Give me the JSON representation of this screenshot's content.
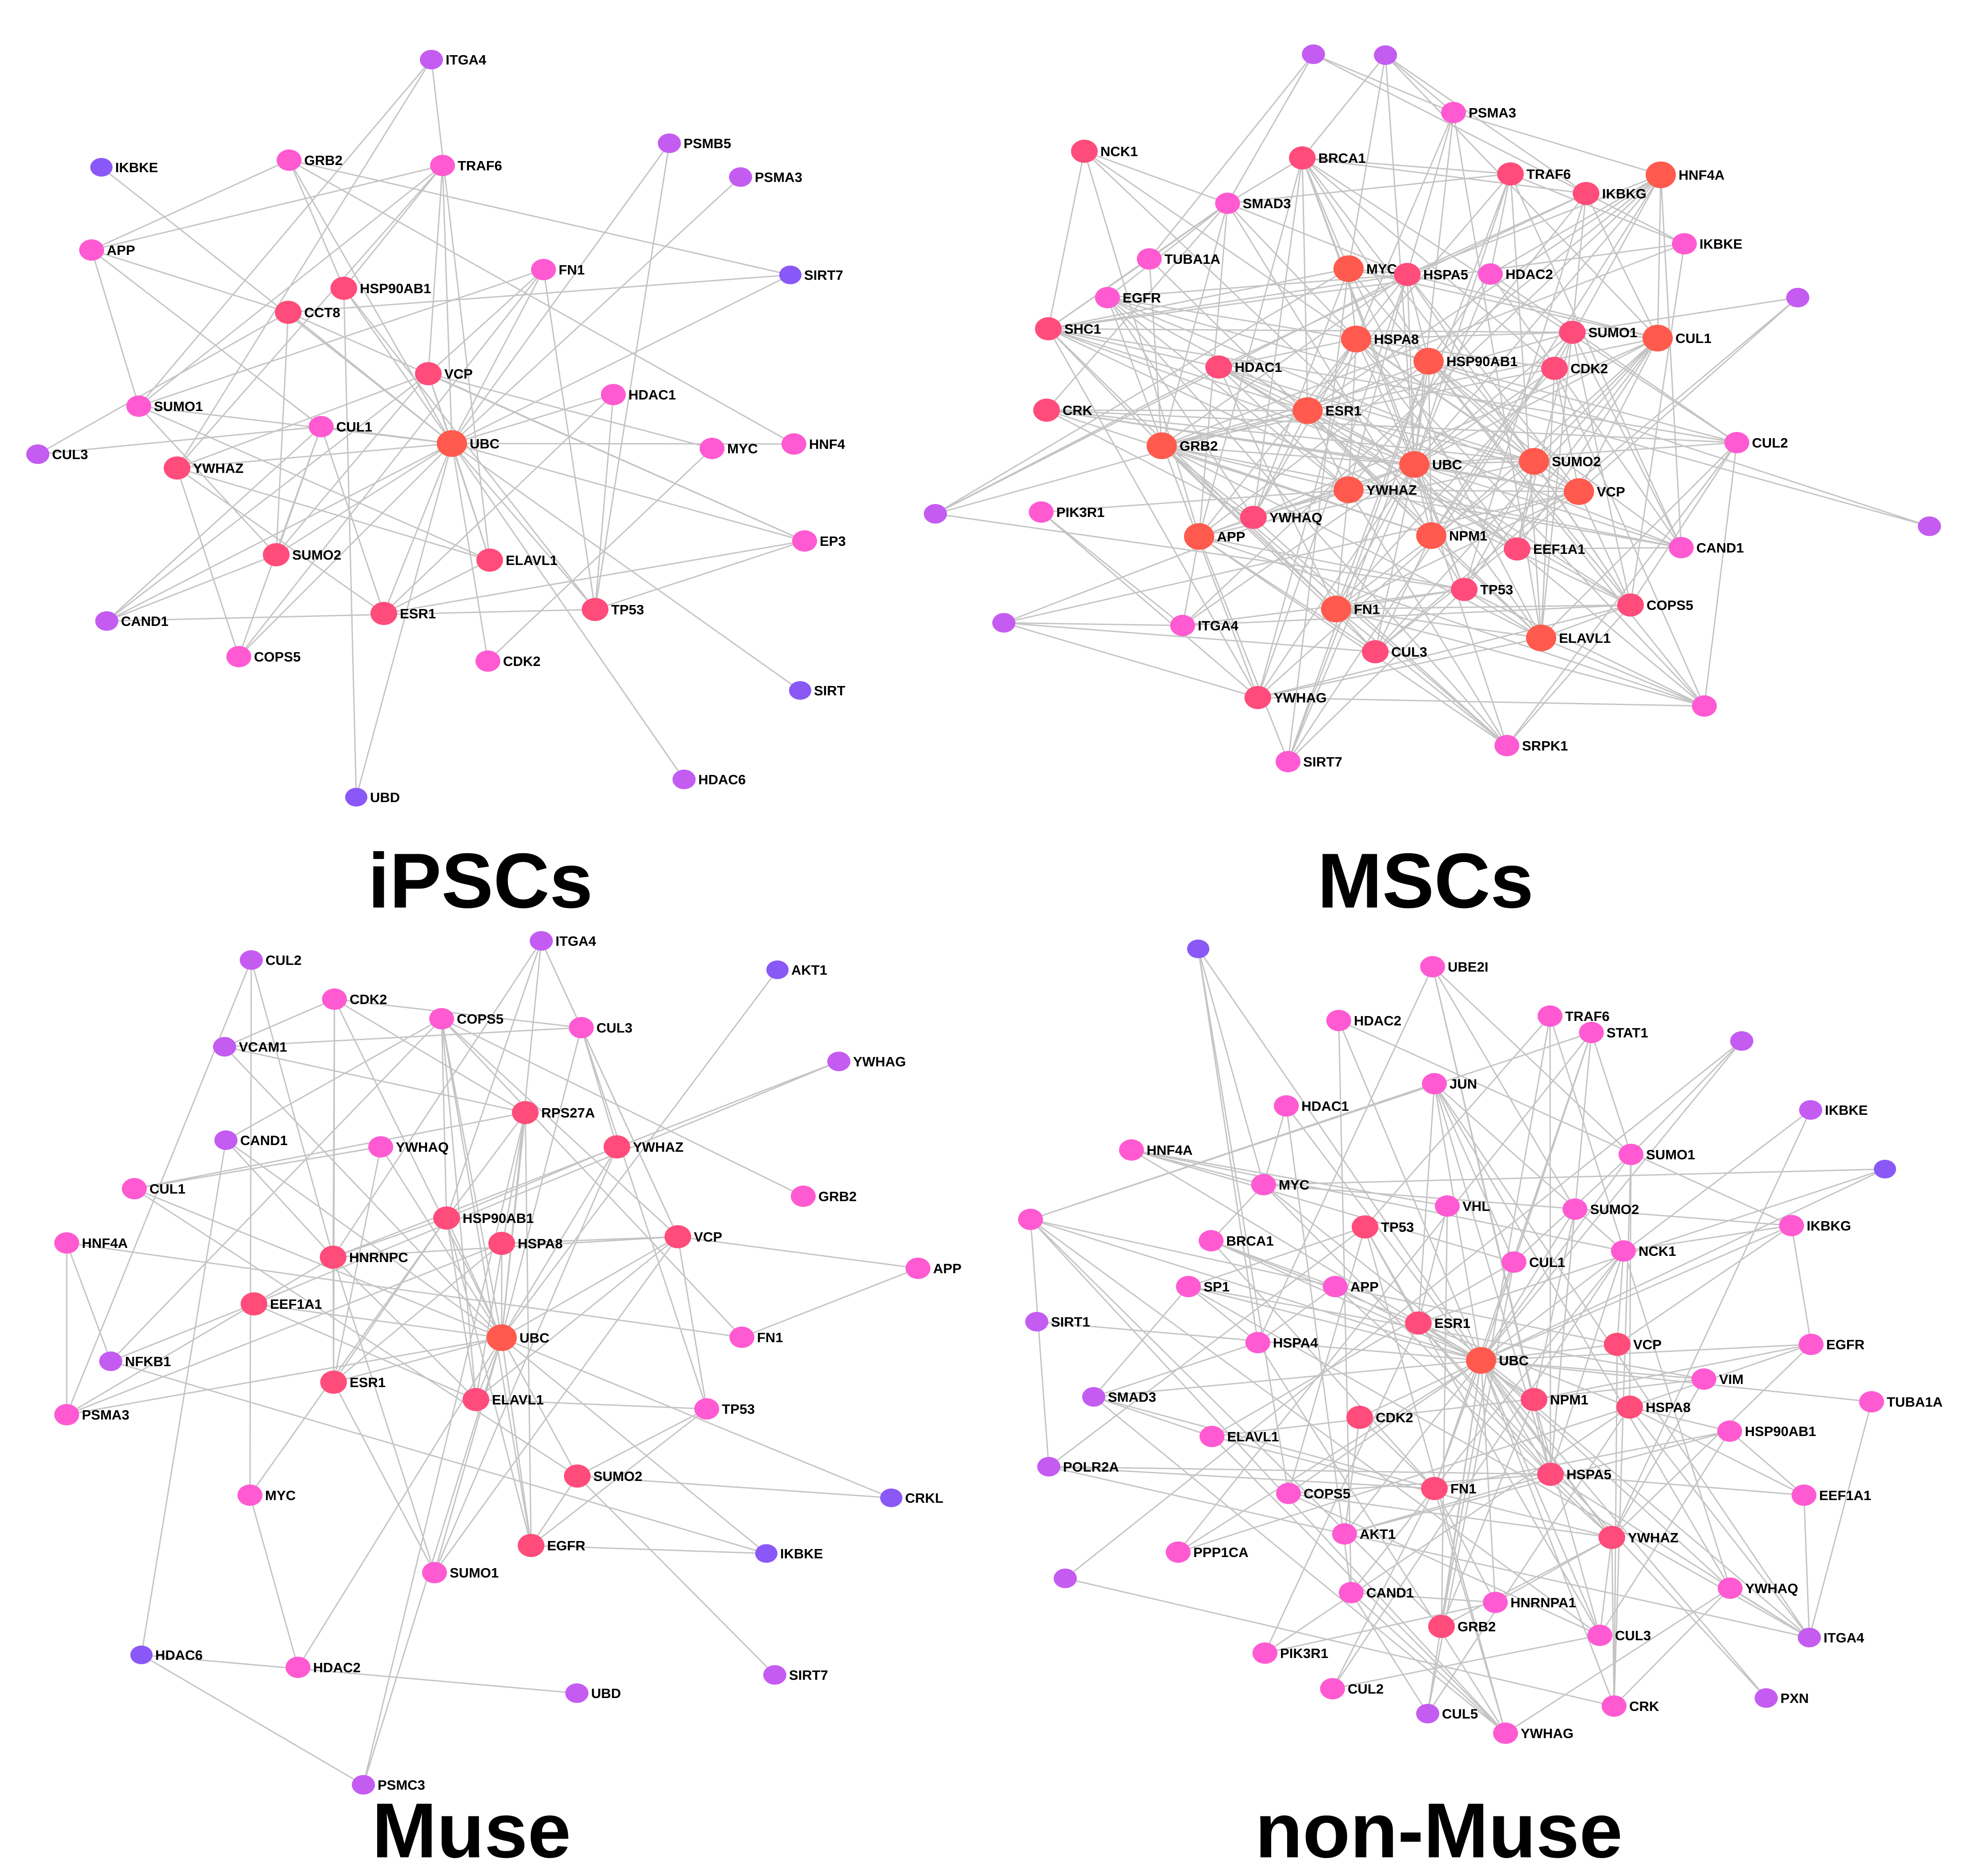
{
  "colors": {
    "hub": "#ff5a4d",
    "high": "#ff4c7a",
    "mid": "#ff5ad2",
    "low": "#c45cf2",
    "lowest": "#8a58f6",
    "edge": "#c4c4c4",
    "background": "#ffffff"
  },
  "panels": [
    {
      "id": "ipsc",
      "title": "iPSCs",
      "nodes": [
        {
          "label": "ITGA4",
          "level": "low"
        },
        {
          "label": "IKBKE",
          "level": "lowest"
        },
        {
          "label": "GRB2",
          "level": "mid"
        },
        {
          "label": "TRAF6",
          "level": "mid"
        },
        {
          "label": "PSMB5",
          "level": "low"
        },
        {
          "label": "PSMA3",
          "level": "low"
        },
        {
          "label": "APP",
          "level": "mid"
        },
        {
          "label": "HSP90AB1",
          "level": "high"
        },
        {
          "label": "FN1",
          "level": "mid"
        },
        {
          "label": "SIRT7",
          "level": "lowest"
        },
        {
          "label": "CCT8",
          "level": "high"
        },
        {
          "label": "VCP",
          "level": "high"
        },
        {
          "label": "HDAC1",
          "level": "mid"
        },
        {
          "label": "SUMO1",
          "level": "mid"
        },
        {
          "label": "CUL1",
          "level": "mid"
        },
        {
          "label": "UBC",
          "level": "hub"
        },
        {
          "label": "CUL3",
          "level": "low"
        },
        {
          "label": "YWHAZ",
          "level": "high"
        },
        {
          "label": "MYC",
          "level": "mid"
        },
        {
          "label": "HNF4",
          "level": "mid"
        },
        {
          "label": "SUMO2",
          "level": "high"
        },
        {
          "label": "ELAVL1",
          "level": "high"
        },
        {
          "label": "EP3",
          "level": "mid"
        },
        {
          "label": "TP53",
          "level": "high"
        },
        {
          "label": "CAND1",
          "level": "low"
        },
        {
          "label": "ESR1",
          "level": "high"
        },
        {
          "label": "COPS5",
          "level": "mid"
        },
        {
          "label": "CDK2",
          "level": "mid"
        },
        {
          "label": "SIRT",
          "level": "lowest"
        },
        {
          "label": "HDAC6",
          "level": "low"
        },
        {
          "label": "UBD",
          "level": "lowest"
        }
      ]
    },
    {
      "id": "msc",
      "title": "MSCs",
      "nodes": [
        {
          "label": "",
          "level": "low"
        },
        {
          "label": "",
          "level": "low"
        },
        {
          "label": "PSMA3",
          "level": "mid"
        },
        {
          "label": "NCK1",
          "level": "high"
        },
        {
          "label": "BRCA1",
          "level": "high"
        },
        {
          "label": "TRAF6",
          "level": "high"
        },
        {
          "label": "HNF4A",
          "level": "hub"
        },
        {
          "label": "SMAD3",
          "level": "mid"
        },
        {
          "label": "IKBKG",
          "level": "high"
        },
        {
          "label": "IKBKE",
          "level": "mid"
        },
        {
          "label": "TUBA1A",
          "level": "mid"
        },
        {
          "label": "MYC",
          "level": "hub"
        },
        {
          "label": "HSPA5",
          "level": "high"
        },
        {
          "label": "HDAC2",
          "level": "mid"
        },
        {
          "label": "EGFR",
          "level": "mid"
        },
        {
          "label": "",
          "level": "low"
        },
        {
          "label": "SHC1",
          "level": "high"
        },
        {
          "label": "HSPA8",
          "level": "hub"
        },
        {
          "label": "SUMO1",
          "level": "high"
        },
        {
          "label": "CUL1",
          "level": "hub"
        },
        {
          "label": "HSP90AB1",
          "level": "hub"
        },
        {
          "label": "HDAC1",
          "level": "high"
        },
        {
          "label": "CDK2",
          "level": "high"
        },
        {
          "label": "CRK",
          "level": "high"
        },
        {
          "label": "ESR1",
          "level": "hub"
        },
        {
          "label": "CUL2",
          "level": "mid"
        },
        {
          "label": "GRB2",
          "level": "hub"
        },
        {
          "label": "UBC",
          "level": "hub"
        },
        {
          "label": "SUMO2",
          "level": "hub"
        },
        {
          "label": "YWHAZ",
          "level": "hub"
        },
        {
          "label": "VCP",
          "level": "hub"
        },
        {
          "label": "",
          "level": "low"
        },
        {
          "label": "PIK3R1",
          "level": "mid"
        },
        {
          "label": "YWHAQ",
          "level": "high"
        },
        {
          "label": "",
          "level": "low"
        },
        {
          "label": "APP",
          "level": "hub"
        },
        {
          "label": "NPM1",
          "level": "hub"
        },
        {
          "label": "EEF1A1",
          "level": "high"
        },
        {
          "label": "CAND1",
          "level": "mid"
        },
        {
          "label": "TP53",
          "level": "high"
        },
        {
          "label": "FN1",
          "level": "hub"
        },
        {
          "label": "COPS5",
          "level": "high"
        },
        {
          "label": "",
          "level": "low"
        },
        {
          "label": "ITGA4",
          "level": "mid"
        },
        {
          "label": "CUL3",
          "level": "high"
        },
        {
          "label": "ELAVL1",
          "level": "hub"
        },
        {
          "label": "YWHAG",
          "level": "high"
        },
        {
          "label": "",
          "level": "mid"
        },
        {
          "label": "SRPK1",
          "level": "mid"
        },
        {
          "label": "SIRT7",
          "level": "mid"
        }
      ]
    },
    {
      "id": "muse",
      "title": "Muse",
      "nodes": [
        {
          "label": "ITGA4",
          "level": "low"
        },
        {
          "label": "CUL2",
          "level": "low"
        },
        {
          "label": "AKT1",
          "level": "lowest"
        },
        {
          "label": "CDK2",
          "level": "mid"
        },
        {
          "label": "COPS5",
          "level": "mid"
        },
        {
          "label": "CUL3",
          "level": "mid"
        },
        {
          "label": "VCAM1",
          "level": "low"
        },
        {
          "label": "YWHAG",
          "level": "low"
        },
        {
          "label": "RPS27A",
          "level": "high"
        },
        {
          "label": "CAND1",
          "level": "low"
        },
        {
          "label": "YWHAQ",
          "level": "mid"
        },
        {
          "label": "YWHAZ",
          "level": "high"
        },
        {
          "label": "CUL1",
          "level": "mid"
        },
        {
          "label": "GRB2",
          "level": "mid"
        },
        {
          "label": "HNF4A",
          "level": "mid"
        },
        {
          "label": "HSP90AB1",
          "level": "high"
        },
        {
          "label": "VCP",
          "level": "high"
        },
        {
          "label": "HSPA8",
          "level": "high"
        },
        {
          "label": "HNRNPC",
          "level": "high"
        },
        {
          "label": "APP",
          "level": "mid"
        },
        {
          "label": "EEF1A1",
          "level": "high"
        },
        {
          "label": "UBC",
          "level": "hub"
        },
        {
          "label": "FN1",
          "level": "mid"
        },
        {
          "label": "NFKB1",
          "level": "low"
        },
        {
          "label": "ESR1",
          "level": "high"
        },
        {
          "label": "ELAVL1",
          "level": "high"
        },
        {
          "label": "TP53",
          "level": "mid"
        },
        {
          "label": "PSMA3",
          "level": "mid"
        },
        {
          "label": "SUMO2",
          "level": "high"
        },
        {
          "label": "MYC",
          "level": "mid"
        },
        {
          "label": "CRKL",
          "level": "lowest"
        },
        {
          "label": "EGFR",
          "level": "high"
        },
        {
          "label": "IKBKE",
          "level": "lowest"
        },
        {
          "label": "SUMO1",
          "level": "mid"
        },
        {
          "label": "HDAC6",
          "level": "lowest"
        },
        {
          "label": "HDAC2",
          "level": "mid"
        },
        {
          "label": "SIRT7",
          "level": "low"
        },
        {
          "label": "UBD",
          "level": "low"
        },
        {
          "label": "PSMC3",
          "level": "low"
        }
      ]
    },
    {
      "id": "nonmuse",
      "title": "non-Muse",
      "nodes": [
        {
          "label": "",
          "level": "lowest"
        },
        {
          "label": "UBE2I",
          "level": "mid"
        },
        {
          "label": "HDAC2",
          "level": "mid"
        },
        {
          "label": "TRAF6",
          "level": "mid"
        },
        {
          "label": "STAT1",
          "level": "mid"
        },
        {
          "label": "",
          "level": "low"
        },
        {
          "label": "JUN",
          "level": "mid"
        },
        {
          "label": "HDAC1",
          "level": "mid"
        },
        {
          "label": "IKBKE",
          "level": "low"
        },
        {
          "label": "HNF4A",
          "level": "mid"
        },
        {
          "label": "SUMO1",
          "level": "mid"
        },
        {
          "label": "",
          "level": "lowest"
        },
        {
          "label": "MYC",
          "level": "mid"
        },
        {
          "label": "VHL",
          "level": "mid"
        },
        {
          "label": "SUMO2",
          "level": "mid"
        },
        {
          "label": "TP53",
          "level": "high"
        },
        {
          "label": "IKBKG",
          "level": "mid"
        },
        {
          "label": "",
          "level": "mid"
        },
        {
          "label": "BRCA1",
          "level": "mid"
        },
        {
          "label": "NCK1",
          "level": "mid"
        },
        {
          "label": "CUL1",
          "level": "mid"
        },
        {
          "label": "SP1",
          "level": "mid"
        },
        {
          "label": "APP",
          "level": "mid"
        },
        {
          "label": "ESR1",
          "level": "high"
        },
        {
          "label": "SIRT1",
          "level": "low"
        },
        {
          "label": "HSPA4",
          "level": "mid"
        },
        {
          "label": "UBC",
          "level": "hub"
        },
        {
          "label": "VCP",
          "level": "high"
        },
        {
          "label": "EGFR",
          "level": "mid"
        },
        {
          "label": "VIM",
          "level": "mid"
        },
        {
          "label": "SMAD3",
          "level": "low"
        },
        {
          "label": "NPM1",
          "level": "high"
        },
        {
          "label": "HSPA8",
          "level": "high"
        },
        {
          "label": "TUBA1A",
          "level": "mid"
        },
        {
          "label": "CDK2",
          "level": "high"
        },
        {
          "label": "ELAVL1",
          "level": "mid"
        },
        {
          "label": "HSP90AB1",
          "level": "mid"
        },
        {
          "label": "POLR2A",
          "level": "low"
        },
        {
          "label": "HSPA5",
          "level": "high"
        },
        {
          "label": "FN1",
          "level": "high"
        },
        {
          "label": "COPS5",
          "level": "mid"
        },
        {
          "label": "EEF1A1",
          "level": "mid"
        },
        {
          "label": "AKT1",
          "level": "mid"
        },
        {
          "label": "YWHAZ",
          "level": "high"
        },
        {
          "label": "",
          "level": "low"
        },
        {
          "label": "PPP1CA",
          "level": "mid"
        },
        {
          "label": "CAND1",
          "level": "mid"
        },
        {
          "label": "YWHAQ",
          "level": "mid"
        },
        {
          "label": "HNRNPA1",
          "level": "mid"
        },
        {
          "label": "GRB2",
          "level": "high"
        },
        {
          "label": "CUL3",
          "level": "mid"
        },
        {
          "label": "ITGA4",
          "level": "low"
        },
        {
          "label": "PIK3R1",
          "level": "mid"
        },
        {
          "label": "CUL2",
          "level": "mid"
        },
        {
          "label": "CUL5",
          "level": "low"
        },
        {
          "label": "CRK",
          "level": "mid"
        },
        {
          "label": "PXN",
          "level": "low"
        },
        {
          "label": "YWHAG",
          "level": "mid"
        }
      ]
    }
  ]
}
